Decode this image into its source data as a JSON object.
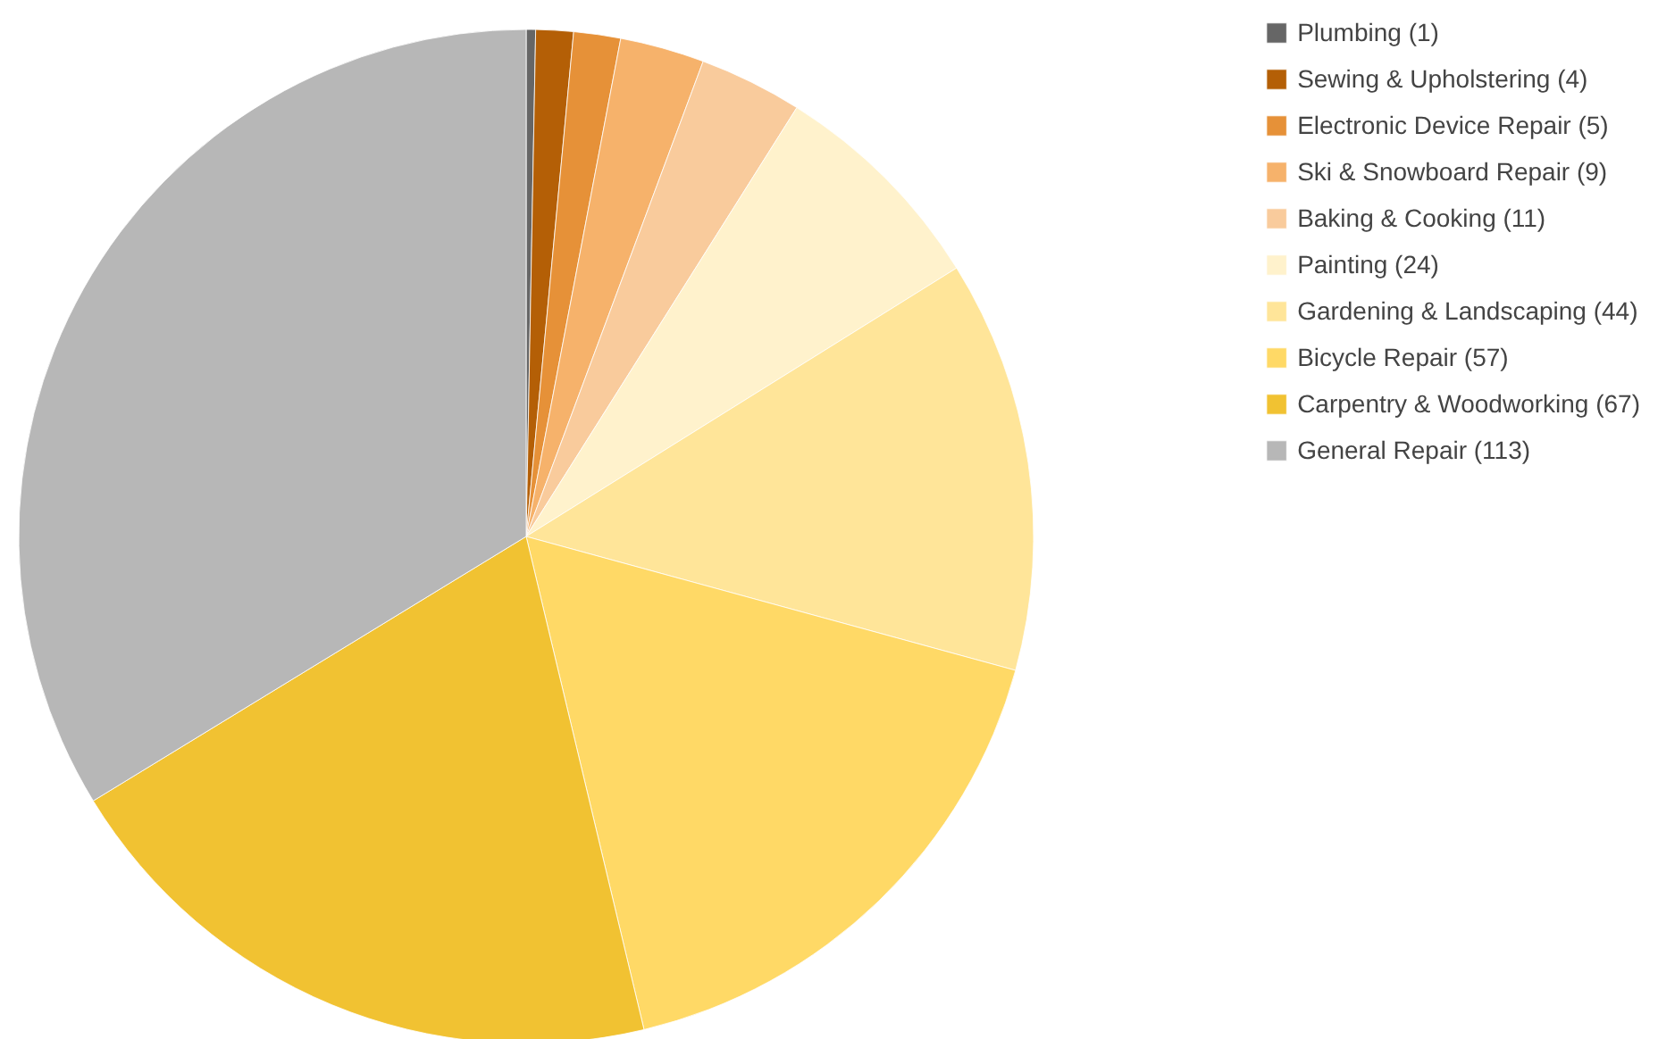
{
  "chart_data": {
    "type": "pie",
    "categories": [
      "Plumbing (1)",
      "Sewing & Upholstering (4)",
      "Electronic Device Repair (5)",
      "Ski & Snowboard Repair (9)",
      "Baking & Cooking (11)",
      "Painting (24)",
      "Gardening & Landscaping (44)",
      "Bicycle Repair (57)",
      "Carpentry & Woodworking (67)",
      "General Repair (113)"
    ],
    "values": [
      1,
      4,
      5,
      9,
      11,
      24,
      44,
      57,
      67,
      113
    ],
    "colors": [
      "#666666",
      "#b45f06",
      "#e69138",
      "#f6b26b",
      "#f9cb9c",
      "#fff2cc",
      "#ffe599",
      "#ffd966",
      "#f1c232",
      "#b7b7b7"
    ],
    "legend": "top right"
  }
}
